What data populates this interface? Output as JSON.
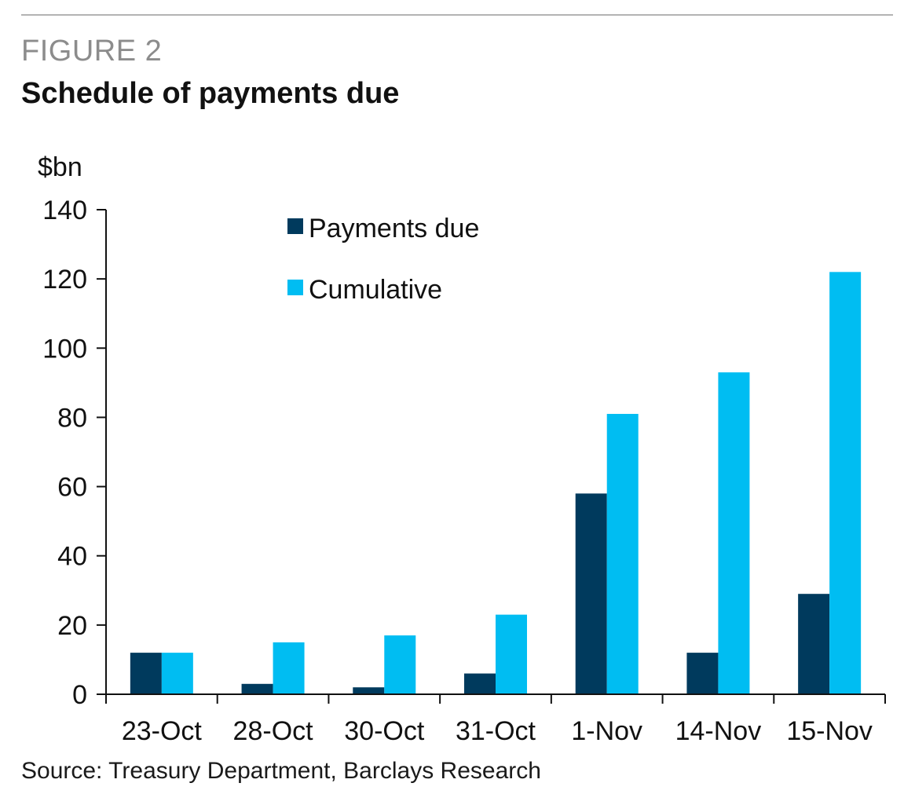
{
  "figure_label": "FIGURE 2",
  "source": "Source: Treasury Department, Barclays Research",
  "colors": {
    "payments_due": "#003a5d",
    "cumulative": "#00bdf2",
    "axis": "#111111"
  },
  "chart_data": {
    "type": "bar",
    "title": "Schedule of payments due",
    "ylabel": "$bn",
    "xlabel": "",
    "ylim": [
      0,
      140
    ],
    "yticks": [
      0,
      20,
      40,
      60,
      80,
      100,
      120,
      140
    ],
    "categories": [
      "23-Oct",
      "28-Oct",
      "30-Oct",
      "31-Oct",
      "1-Nov",
      "14-Nov",
      "15-Nov"
    ],
    "series": [
      {
        "name": "Payments due",
        "color": "#003a5d",
        "values": [
          12,
          3,
          2,
          6,
          58,
          12,
          29
        ]
      },
      {
        "name": "Cumulative",
        "color": "#00bdf2",
        "values": [
          12,
          15,
          17,
          23,
          81,
          93,
          122
        ]
      }
    ],
    "legend_position": "top-center",
    "grid": false
  }
}
